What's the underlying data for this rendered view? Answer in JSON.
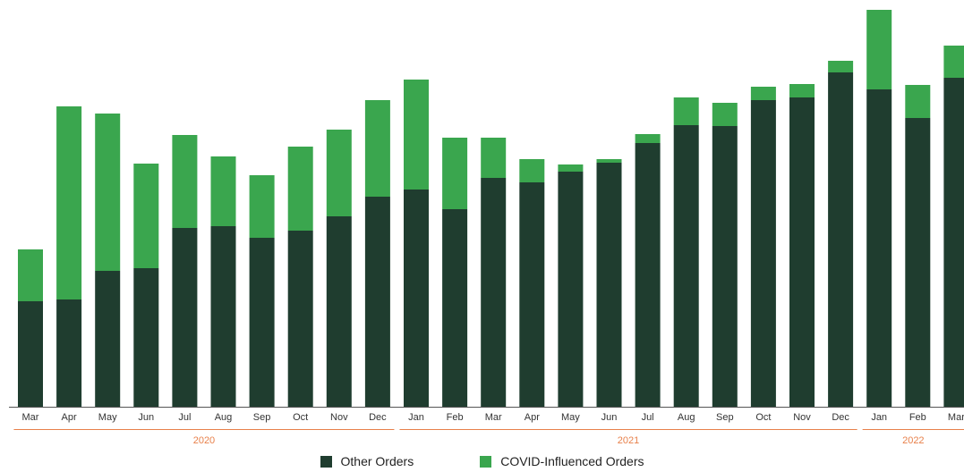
{
  "chart_data": {
    "type": "bar",
    "stacked": true,
    "categories": [
      "Mar",
      "Apr",
      "May",
      "Jun",
      "Jul",
      "Aug",
      "Sep",
      "Oct",
      "Nov",
      "Dec",
      "Jan",
      "Feb",
      "Mar",
      "Apr",
      "May",
      "Jun",
      "Jul",
      "Aug",
      "Sep",
      "Oct",
      "Nov",
      "Dec",
      "Jan",
      "Feb",
      "Mar"
    ],
    "year_groups": [
      {
        "label": "2020",
        "start": 0,
        "end": 9
      },
      {
        "label": "2021",
        "start": 10,
        "end": 21
      },
      {
        "label": "2022",
        "start": 22,
        "end": 24
      }
    ],
    "series": [
      {
        "name": "Other Orders",
        "color": "#1f3d2f",
        "values": [
          118,
          120,
          152,
          155,
          200,
          202,
          189,
          197,
          213,
          235,
          243,
          221,
          256,
          251,
          263,
          273,
          295,
          315,
          314,
          343,
          346,
          374,
          355,
          323,
          368
        ]
      },
      {
        "name": "COVID-Influenced Orders",
        "color": "#3aa64e",
        "values": [
          58,
          216,
          176,
          117,
          104,
          78,
          70,
          94,
          97,
          108,
          123,
          80,
          45,
          26,
          8,
          4,
          10,
          31,
          26,
          15,
          15,
          13,
          89,
          37,
          36
        ]
      }
    ],
    "xlabel": "",
    "ylabel": "",
    "ylim": [
      0,
      450
    ],
    "grid": false,
    "legend": "bottom-center"
  }
}
